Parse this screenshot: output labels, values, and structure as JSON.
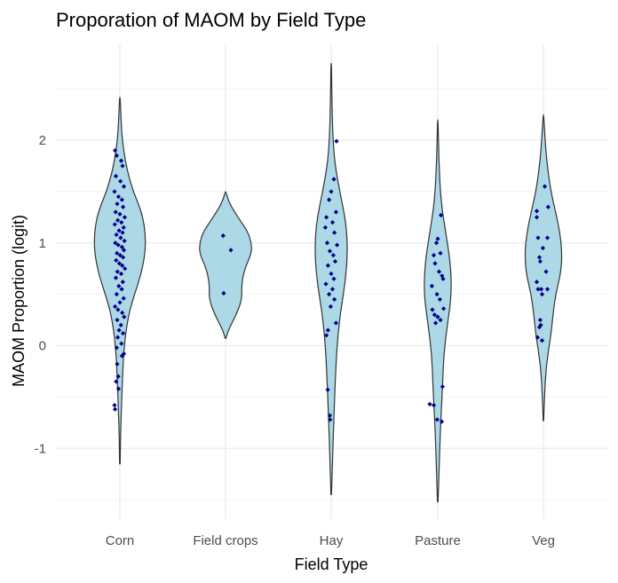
{
  "chart_data": {
    "type": "violin",
    "title": "Proporation of MAOM by Field Type",
    "xlabel": "Field Type",
    "ylabel": "MAOM Proportion (logit)",
    "categories": [
      "Corn",
      "Field crops",
      "Hay",
      "Pasture",
      "Veg"
    ],
    "y_ticks": [
      -1,
      0,
      1,
      2
    ],
    "y_tick_labels": [
      "-1",
      "0",
      "1",
      "2"
    ],
    "ylim": [
      -1.65,
      2.75
    ],
    "grid": true,
    "legend": "none",
    "colors": {
      "violin_fill": "#add8e6",
      "violin_outline": "#333333",
      "point": "#00008b",
      "grid_major": "#e6e6e6",
      "grid_minor": "#f2f2f2"
    },
    "violins": [
      {
        "category": "Corn",
        "y_range": [
          -1.15,
          2.42
        ],
        "density": [
          [
            -1.15,
            0.01
          ],
          [
            -0.8,
            0.03
          ],
          [
            -0.6,
            0.06
          ],
          [
            -0.3,
            0.1
          ],
          [
            0.0,
            0.16
          ],
          [
            0.3,
            0.32
          ],
          [
            0.5,
            0.55
          ],
          [
            0.7,
            0.8
          ],
          [
            0.9,
            0.95
          ],
          [
            1.1,
            0.96
          ],
          [
            1.3,
            0.82
          ],
          [
            1.5,
            0.5
          ],
          [
            1.7,
            0.28
          ],
          [
            1.9,
            0.14
          ],
          [
            2.1,
            0.06
          ],
          [
            2.3,
            0.03
          ],
          [
            2.42,
            0.01
          ]
        ]
      },
      {
        "category": "Field crops",
        "y_range": [
          0.07,
          1.5
        ],
        "density": [
          [
            0.07,
            0.01
          ],
          [
            0.15,
            0.1
          ],
          [
            0.3,
            0.4
          ],
          [
            0.45,
            0.62
          ],
          [
            0.6,
            0.6
          ],
          [
            0.75,
            0.72
          ],
          [
            0.9,
            0.98
          ],
          [
            1.0,
            0.97
          ],
          [
            1.1,
            0.85
          ],
          [
            1.2,
            0.6
          ],
          [
            1.3,
            0.34
          ],
          [
            1.4,
            0.12
          ],
          [
            1.5,
            0.01
          ]
        ]
      },
      {
        "category": "Hay",
        "y_range": [
          -1.45,
          2.75
        ],
        "density": [
          [
            -1.45,
            0.01
          ],
          [
            -1.1,
            0.05
          ],
          [
            -0.7,
            0.1
          ],
          [
            -0.3,
            0.16
          ],
          [
            0.0,
            0.22
          ],
          [
            0.3,
            0.33
          ],
          [
            0.6,
            0.52
          ],
          [
            0.9,
            0.62
          ],
          [
            1.2,
            0.56
          ],
          [
            1.5,
            0.32
          ],
          [
            1.8,
            0.12
          ],
          [
            2.1,
            0.05
          ],
          [
            2.5,
            0.02
          ],
          [
            2.75,
            0.01
          ]
        ]
      },
      {
        "category": "Pasture",
        "y_range": [
          -1.52,
          2.2
        ],
        "density": [
          [
            -1.52,
            0.01
          ],
          [
            -1.2,
            0.05
          ],
          [
            -0.8,
            0.1
          ],
          [
            -0.4,
            0.18
          ],
          [
            -0.1,
            0.22
          ],
          [
            0.2,
            0.36
          ],
          [
            0.5,
            0.52
          ],
          [
            0.8,
            0.48
          ],
          [
            1.1,
            0.3
          ],
          [
            1.4,
            0.12
          ],
          [
            1.8,
            0.04
          ],
          [
            2.2,
            0.01
          ]
        ]
      },
      {
        "category": "Veg",
        "y_range": [
          -0.73,
          2.25
        ],
        "density": [
          [
            -0.73,
            0.01
          ],
          [
            -0.5,
            0.04
          ],
          [
            -0.2,
            0.1
          ],
          [
            0.1,
            0.28
          ],
          [
            0.3,
            0.36
          ],
          [
            0.5,
            0.46
          ],
          [
            0.7,
            0.65
          ],
          [
            0.9,
            0.7
          ],
          [
            1.1,
            0.62
          ],
          [
            1.3,
            0.46
          ],
          [
            1.5,
            0.28
          ],
          [
            1.8,
            0.12
          ],
          [
            2.1,
            0.04
          ],
          [
            2.25,
            0.01
          ]
        ]
      }
    ],
    "points": [
      {
        "category": "Corn",
        "jitter": -0.18,
        "y": 1.9
      },
      {
        "category": "Corn",
        "jitter": -0.12,
        "y": 1.85
      },
      {
        "category": "Corn",
        "jitter": 0.05,
        "y": 1.8
      },
      {
        "category": "Corn",
        "jitter": 0.1,
        "y": 1.75
      },
      {
        "category": "Corn",
        "jitter": -0.15,
        "y": 1.65
      },
      {
        "category": "Corn",
        "jitter": 0.02,
        "y": 1.6
      },
      {
        "category": "Corn",
        "jitter": 0.15,
        "y": 1.55
      },
      {
        "category": "Corn",
        "jitter": -0.2,
        "y": 1.5
      },
      {
        "category": "Corn",
        "jitter": -0.05,
        "y": 1.45
      },
      {
        "category": "Corn",
        "jitter": 0.08,
        "y": 1.42
      },
      {
        "category": "Corn",
        "jitter": -0.1,
        "y": 1.38
      },
      {
        "category": "Corn",
        "jitter": 0.12,
        "y": 1.35
      },
      {
        "category": "Corn",
        "jitter": -0.16,
        "y": 1.3
      },
      {
        "category": "Corn",
        "jitter": 0.0,
        "y": 1.28
      },
      {
        "category": "Corn",
        "jitter": 0.18,
        "y": 1.25
      },
      {
        "category": "Corn",
        "jitter": -0.08,
        "y": 1.22
      },
      {
        "category": "Corn",
        "jitter": 0.06,
        "y": 1.2
      },
      {
        "category": "Corn",
        "jitter": -0.19,
        "y": 1.18
      },
      {
        "category": "Corn",
        "jitter": 0.14,
        "y": 1.15
      },
      {
        "category": "Corn",
        "jitter": -0.03,
        "y": 1.12
      },
      {
        "category": "Corn",
        "jitter": 0.1,
        "y": 1.1
      },
      {
        "category": "Corn",
        "jitter": -0.13,
        "y": 1.08
      },
      {
        "category": "Corn",
        "jitter": 0.03,
        "y": 1.05
      },
      {
        "category": "Corn",
        "jitter": 0.17,
        "y": 1.02
      },
      {
        "category": "Corn",
        "jitter": -0.17,
        "y": 1.0
      },
      {
        "category": "Corn",
        "jitter": -0.06,
        "y": 0.98
      },
      {
        "category": "Corn",
        "jitter": 0.08,
        "y": 0.96
      },
      {
        "category": "Corn",
        "jitter": 0.15,
        "y": 0.93
      },
      {
        "category": "Corn",
        "jitter": -0.11,
        "y": 0.9
      },
      {
        "category": "Corn",
        "jitter": 0.01,
        "y": 0.88
      },
      {
        "category": "Corn",
        "jitter": 0.12,
        "y": 0.86
      },
      {
        "category": "Corn",
        "jitter": -0.14,
        "y": 0.83
      },
      {
        "category": "Corn",
        "jitter": -0.02,
        "y": 0.8
      },
      {
        "category": "Corn",
        "jitter": 0.09,
        "y": 0.78
      },
      {
        "category": "Corn",
        "jitter": 0.19,
        "y": 0.75
      },
      {
        "category": "Corn",
        "jitter": -0.09,
        "y": 0.72
      },
      {
        "category": "Corn",
        "jitter": 0.05,
        "y": 0.7
      },
      {
        "category": "Corn",
        "jitter": -0.15,
        "y": 0.66
      },
      {
        "category": "Corn",
        "jitter": 0.11,
        "y": 0.62
      },
      {
        "category": "Corn",
        "jitter": -0.04,
        "y": 0.58
      },
      {
        "category": "Corn",
        "jitter": 0.07,
        "y": 0.55
      },
      {
        "category": "Corn",
        "jitter": -0.12,
        "y": 0.5
      },
      {
        "category": "Corn",
        "jitter": 0.14,
        "y": 0.46
      },
      {
        "category": "Corn",
        "jitter": 0.0,
        "y": 0.42
      },
      {
        "category": "Corn",
        "jitter": -0.18,
        "y": 0.38
      },
      {
        "category": "Corn",
        "jitter": -0.07,
        "y": 0.35
      },
      {
        "category": "Corn",
        "jitter": 0.09,
        "y": 0.32
      },
      {
        "category": "Corn",
        "jitter": 0.16,
        "y": 0.28
      },
      {
        "category": "Corn",
        "jitter": -0.1,
        "y": 0.25
      },
      {
        "category": "Corn",
        "jitter": 0.04,
        "y": 0.2
      },
      {
        "category": "Corn",
        "jitter": -0.03,
        "y": 0.15
      },
      {
        "category": "Corn",
        "jitter": 0.12,
        "y": 0.12
      },
      {
        "category": "Corn",
        "jitter": -0.08,
        "y": 0.08
      },
      {
        "category": "Corn",
        "jitter": 0.06,
        "y": 0.02
      },
      {
        "category": "Corn",
        "jitter": -0.12,
        "y": -0.02
      },
      {
        "category": "Corn",
        "jitter": 0.15,
        "y": -0.08
      },
      {
        "category": "Corn",
        "jitter": -0.1,
        "y": -0.18
      },
      {
        "category": "Corn",
        "jitter": 0.08,
        "y": -0.1
      },
      {
        "category": "Corn",
        "jitter": -0.06,
        "y": -0.3
      },
      {
        "category": "Corn",
        "jitter": -0.14,
        "y": -0.35
      },
      {
        "category": "Corn",
        "jitter": -0.2,
        "y": -0.58
      },
      {
        "category": "Corn",
        "jitter": -0.18,
        "y": -0.62
      },
      {
        "category": "Corn",
        "jitter": -0.05,
        "y": -0.42
      },
      {
        "category": "Field crops",
        "jitter": -0.09,
        "y": 1.07
      },
      {
        "category": "Field crops",
        "jitter": 0.2,
        "y": 0.93
      },
      {
        "category": "Field crops",
        "jitter": -0.07,
        "y": 0.51
      },
      {
        "category": "Hay",
        "jitter": 0.2,
        "y": 1.99
      },
      {
        "category": "Hay",
        "jitter": 0.1,
        "y": 1.62
      },
      {
        "category": "Hay",
        "jitter": 0.0,
        "y": 1.5
      },
      {
        "category": "Hay",
        "jitter": -0.08,
        "y": 1.42
      },
      {
        "category": "Hay",
        "jitter": 0.18,
        "y": 1.3
      },
      {
        "category": "Hay",
        "jitter": -0.18,
        "y": 1.25
      },
      {
        "category": "Hay",
        "jitter": 0.05,
        "y": 1.2
      },
      {
        "category": "Hay",
        "jitter": -0.22,
        "y": 1.15
      },
      {
        "category": "Hay",
        "jitter": 0.12,
        "y": 1.1
      },
      {
        "category": "Hay",
        "jitter": -0.15,
        "y": 1.0
      },
      {
        "category": "Hay",
        "jitter": 0.22,
        "y": 0.98
      },
      {
        "category": "Hay",
        "jitter": -0.05,
        "y": 0.92
      },
      {
        "category": "Hay",
        "jitter": 0.08,
        "y": 0.88
      },
      {
        "category": "Hay",
        "jitter": 0.15,
        "y": 0.82
      },
      {
        "category": "Hay",
        "jitter": -0.12,
        "y": 0.78
      },
      {
        "category": "Hay",
        "jitter": 0.0,
        "y": 0.7
      },
      {
        "category": "Hay",
        "jitter": 0.1,
        "y": 0.65
      },
      {
        "category": "Hay",
        "jitter": -0.2,
        "y": 0.6
      },
      {
        "category": "Hay",
        "jitter": 0.05,
        "y": 0.55
      },
      {
        "category": "Hay",
        "jitter": -0.08,
        "y": 0.5
      },
      {
        "category": "Hay",
        "jitter": 0.12,
        "y": 0.45
      },
      {
        "category": "Hay",
        "jitter": -0.02,
        "y": 0.38
      },
      {
        "category": "Hay",
        "jitter": 0.18,
        "y": 0.22
      },
      {
        "category": "Hay",
        "jitter": -0.12,
        "y": 0.15
      },
      {
        "category": "Hay",
        "jitter": -0.18,
        "y": 0.1
      },
      {
        "category": "Hay",
        "jitter": -0.13,
        "y": -0.43
      },
      {
        "category": "Hay",
        "jitter": -0.05,
        "y": -0.68
      },
      {
        "category": "Hay",
        "jitter": -0.04,
        "y": -0.72
      },
      {
        "category": "Pasture",
        "jitter": 0.12,
        "y": 1.27
      },
      {
        "category": "Pasture",
        "jitter": 0.0,
        "y": 1.04
      },
      {
        "category": "Pasture",
        "jitter": -0.05,
        "y": 1.0
      },
      {
        "category": "Pasture",
        "jitter": 0.1,
        "y": 0.9
      },
      {
        "category": "Pasture",
        "jitter": -0.15,
        "y": 0.88
      },
      {
        "category": "Pasture",
        "jitter": -0.1,
        "y": 0.8
      },
      {
        "category": "Pasture",
        "jitter": 0.05,
        "y": 0.72
      },
      {
        "category": "Pasture",
        "jitter": 0.16,
        "y": 0.68
      },
      {
        "category": "Pasture",
        "jitter": 0.2,
        "y": 0.65
      },
      {
        "category": "Pasture",
        "jitter": -0.22,
        "y": 0.58
      },
      {
        "category": "Pasture",
        "jitter": -0.03,
        "y": 0.5
      },
      {
        "category": "Pasture",
        "jitter": 0.08,
        "y": 0.45
      },
      {
        "category": "Pasture",
        "jitter": 0.22,
        "y": 0.36
      },
      {
        "category": "Pasture",
        "jitter": -0.2,
        "y": 0.35
      },
      {
        "category": "Pasture",
        "jitter": -0.12,
        "y": 0.3
      },
      {
        "category": "Pasture",
        "jitter": 0.0,
        "y": 0.28
      },
      {
        "category": "Pasture",
        "jitter": 0.1,
        "y": 0.25
      },
      {
        "category": "Pasture",
        "jitter": -0.08,
        "y": 0.22
      },
      {
        "category": "Pasture",
        "jitter": 0.18,
        "y": -0.4
      },
      {
        "category": "Pasture",
        "jitter": -0.3,
        "y": -0.57
      },
      {
        "category": "Pasture",
        "jitter": -0.15,
        "y": -0.58
      },
      {
        "category": "Pasture",
        "jitter": 0.15,
        "y": -0.74
      },
      {
        "category": "Pasture",
        "jitter": -0.02,
        "y": -0.72
      },
      {
        "category": "Veg",
        "jitter": -0.25,
        "y": 1.31
      },
      {
        "category": "Veg",
        "jitter": 0.05,
        "y": 1.55
      },
      {
        "category": "Veg",
        "jitter": -0.25,
        "y": 1.25
      },
      {
        "category": "Veg",
        "jitter": 0.15,
        "y": 1.05
      },
      {
        "category": "Veg",
        "jitter": -0.2,
        "y": 1.05
      },
      {
        "category": "Veg",
        "jitter": -0.02,
        "y": 0.95
      },
      {
        "category": "Veg",
        "jitter": -0.15,
        "y": 0.86
      },
      {
        "category": "Veg",
        "jitter": -0.12,
        "y": 0.82
      },
      {
        "category": "Veg",
        "jitter": -0.25,
        "y": 0.62
      },
      {
        "category": "Veg",
        "jitter": 0.1,
        "y": 0.72
      },
      {
        "category": "Veg",
        "jitter": -0.08,
        "y": 0.55
      },
      {
        "category": "Veg",
        "jitter": -0.2,
        "y": 0.55
      },
      {
        "category": "Veg",
        "jitter": -0.05,
        "y": 0.5
      },
      {
        "category": "Veg",
        "jitter": 0.15,
        "y": 0.55
      },
      {
        "category": "Veg",
        "jitter": -0.1,
        "y": 0.2
      },
      {
        "category": "Veg",
        "jitter": -0.15,
        "y": 0.18
      },
      {
        "category": "Veg",
        "jitter": -0.12,
        "y": 0.25
      },
      {
        "category": "Veg",
        "jitter": -0.22,
        "y": 0.08
      },
      {
        "category": "Veg",
        "jitter": -0.05,
        "y": 0.05
      },
      {
        "category": "Veg",
        "jitter": 0.18,
        "y": 1.35
      }
    ]
  }
}
